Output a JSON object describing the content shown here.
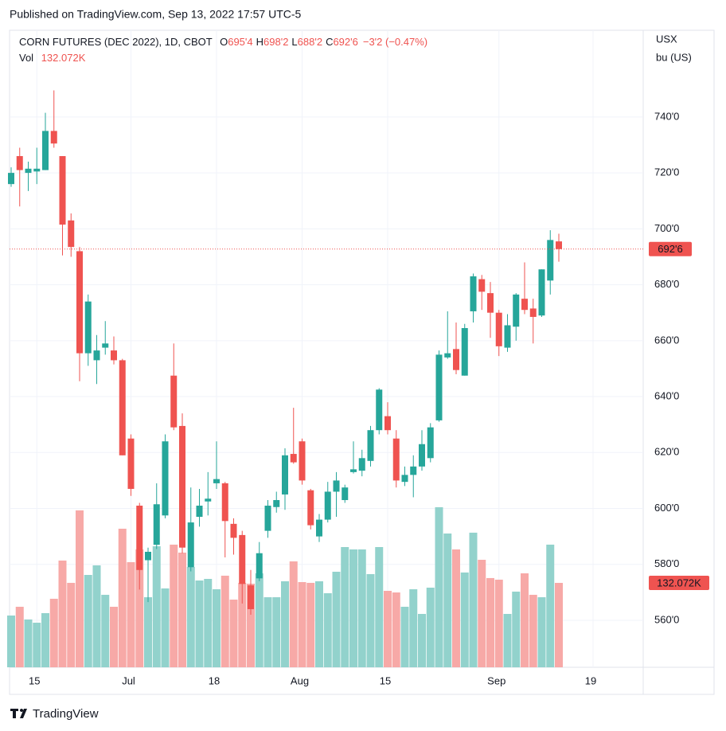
{
  "header": {
    "published": "Published on TradingView.com, Sep 13, 2022 17:57 UTC-5"
  },
  "footer": {
    "brand": "TradingView"
  },
  "chart_data": {
    "type": "candlestick",
    "legend": {
      "symbol": "CORN FUTURES (DEC 2022), 1D, CBOT",
      "ohlc": [
        {
          "key": "O",
          "value": "695'4"
        },
        {
          "key": "H",
          "value": "698'2"
        },
        {
          "key": "L",
          "value": "688'2"
        },
        {
          "key": "C",
          "value": "692'6"
        }
      ],
      "change": "−3'2 (−0.47%)",
      "volume_key": "Vol",
      "volume_value": "132.072K"
    },
    "y_unit": [
      "USX",
      "bu (US)"
    ],
    "categories": [
      null,
      null,
      null,
      "15",
      null,
      null,
      null,
      null,
      null,
      null,
      null,
      null,
      null,
      null,
      "Jul",
      null,
      null,
      null,
      null,
      null,
      null,
      null,
      null,
      null,
      "18",
      null,
      null,
      null,
      null,
      null,
      null,
      null,
      null,
      null,
      "Aug",
      null,
      null,
      null,
      null,
      null,
      null,
      null,
      null,
      null,
      "15",
      null,
      null,
      null,
      null,
      null,
      null,
      null,
      null,
      null,
      null,
      null,
      null,
      "Sep",
      null,
      null,
      null,
      null,
      null,
      null,
      null,
      null,
      null,
      null,
      "19"
    ],
    "open": [
      716,
      726,
      720,
      720.5,
      721,
      735,
      726,
      703,
      692,
      655.5,
      653,
      657.5,
      656.5,
      653,
      625,
      601,
      581.5,
      587,
      597.5,
      647.5,
      629.5,
      579,
      597,
      602.5,
      609,
      609,
      594.5,
      590.5,
      572.5,
      575,
      592,
      600.5,
      605,
      619.5,
      624,
      606.5,
      590,
      596,
      606,
      603,
      613,
      613.5,
      617,
      628,
      633,
      625,
      609.5,
      612,
      615,
      618,
      631.5,
      654,
      657,
      647.5,
      670.5,
      682,
      677,
      670,
      657.5,
      665,
      675,
      671.5,
      669,
      681.5,
      695.5,
      null,
      null,
      null,
      null
    ],
    "high": [
      722,
      729,
      724,
      729,
      741.5,
      749.5,
      726,
      705.5,
      693.5,
      676.5,
      662,
      667,
      661.5,
      653.5,
      626.5,
      602,
      586,
      609,
      626.5,
      659,
      634,
      607.5,
      607,
      613,
      624,
      609.5,
      596.5,
      592,
      578,
      588,
      603,
      606,
      621.5,
      636,
      625,
      607,
      598,
      609.5,
      613,
      608.5,
      624,
      621,
      629.5,
      643,
      638,
      628,
      615,
      619,
      628,
      630.5,
      656.5,
      670.5,
      666.5,
      666,
      684,
      683.5,
      681,
      671,
      669.5,
      677,
      688,
      675,
      685.5,
      699.5,
      698.25,
      null,
      null,
      null,
      null
    ],
    "low": [
      715,
      708,
      713.5,
      716,
      721,
      729,
      690.5,
      690,
      645.5,
      651,
      644.5,
      655,
      651.5,
      619,
      604.5,
      571,
      566.5,
      585.5,
      596.5,
      628,
      584,
      577.5,
      593.5,
      597.5,
      607,
      582.5,
      583.5,
      566,
      562,
      574,
      589.5,
      598.5,
      599.5,
      616,
      608.5,
      592.5,
      588,
      595,
      597,
      602,
      612.5,
      611.5,
      615,
      626.5,
      626.5,
      607.5,
      608,
      604,
      613.5,
      616.5,
      631,
      653.5,
      648,
      647.5,
      666.5,
      671,
      661,
      654.5,
      656,
      660,
      669.5,
      659,
      668.5,
      676.5,
      688.25,
      null,
      null,
      null,
      null
    ],
    "close": [
      720,
      721,
      721.5,
      721.5,
      735,
      730.5,
      701.5,
      693.5,
      655.5,
      674,
      656.5,
      659,
      653,
      619,
      607,
      578,
      584.5,
      601.5,
      624,
      629,
      586,
      595,
      601,
      603.5,
      610.5,
      595.5,
      589.5,
      573,
      564,
      584,
      601,
      603,
      619,
      616.5,
      610,
      594,
      596,
      606,
      610,
      607.5,
      614,
      618,
      628,
      642.5,
      628,
      610,
      612,
      615,
      623,
      629,
      655,
      655.5,
      649.5,
      664.5,
      683,
      677.5,
      670,
      658,
      665.5,
      676.5,
      671,
      668.5,
      685.5,
      696,
      692.75,
      null,
      null,
      null,
      null
    ],
    "volume": [
      81000,
      94700,
      74800,
      69800,
      84700,
      107200,
      167000,
      132100,
      245500,
      144500,
      159500,
      113400,
      94700,
      216800,
      164500,
      184400,
      109600,
      189400,
      123400,
      191900,
      179400,
      157000,
      135800,
      138300,
      122100,
      143300,
      105900,
      132100,
      130800,
      147000,
      109600,
      109600,
      134600,
      165700,
      133300,
      132100,
      134600,
      115900,
      149500,
      188100,
      184400,
      184400,
      145800,
      188100,
      119600,
      117100,
      94700,
      122100,
      83500,
      124600,
      250400,
      209300,
      184400,
      148300,
      210600,
      168200,
      139600,
      137100,
      83500,
      118400,
      147000,
      113400,
      109600,
      191900,
      132072,
      null,
      null,
      null,
      null
    ],
    "last_price_label": "692'6",
    "last_volume_label": "132.072K",
    "ylim": [
      543.2,
      771.0
    ],
    "yticks": [
      {
        "value": 560,
        "label": "560'0"
      },
      {
        "value": 580,
        "label": "580'0"
      },
      {
        "value": 600,
        "label": "600'0"
      },
      {
        "value": 620,
        "label": "620'0"
      },
      {
        "value": 640,
        "label": "640'0"
      },
      {
        "value": 660,
        "label": "660'0"
      },
      {
        "value": 680,
        "label": "680'0"
      },
      {
        "value": 700,
        "label": "700'0"
      },
      {
        "value": 720,
        "label": "720'0"
      },
      {
        "value": 740,
        "label": "740'0"
      }
    ],
    "grid": true,
    "up_color": "#26a69a",
    "down_color": "#ef5350",
    "volume_up_color": "#92d2cc",
    "volume_down_color": "#f7a9a7"
  }
}
